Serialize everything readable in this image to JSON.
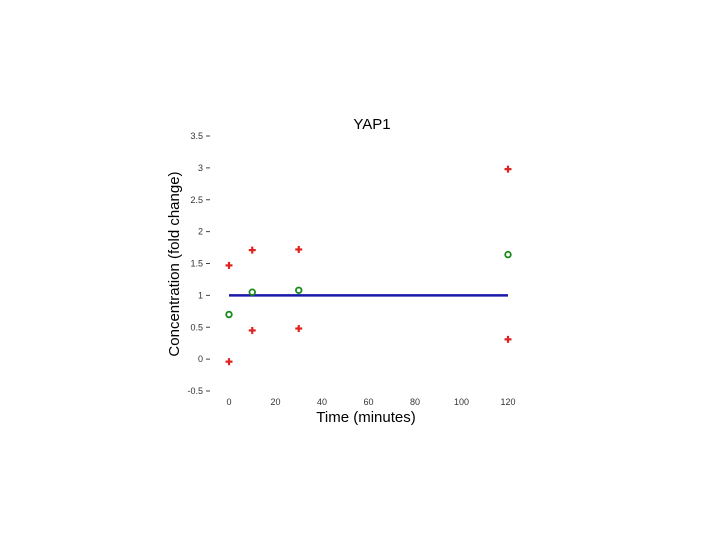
{
  "chart_data": {
    "type": "scatter",
    "title": "YAP1",
    "xlabel": "Time (minutes)",
    "ylabel": "Concentration (fold change)",
    "xlim": [
      0,
      120
    ],
    "ylim": [
      -0.5,
      3.5
    ],
    "xticks": [
      0,
      20,
      40,
      60,
      80,
      100,
      120
    ],
    "xtick_labels": [
      "0",
      "20",
      "40",
      "60",
      "80",
      "100",
      "120"
    ],
    "yticks": [
      -0.5,
      0,
      0.5,
      1,
      1.5,
      2,
      2.5,
      3,
      3.5
    ],
    "ytick_labels": [
      "-0.5",
      "0",
      "0.5",
      "1",
      "1.5",
      "2",
      "2.5",
      "3",
      "3.5"
    ],
    "grid": false,
    "legend": "none",
    "series": [
      {
        "marker": "plus",
        "color": "#dd2222",
        "points": [
          {
            "x": 0,
            "y": 1.47
          },
          {
            "x": 0,
            "y": -0.04
          },
          {
            "x": 10,
            "y": 1.71
          },
          {
            "x": 10,
            "y": 0.45
          },
          {
            "x": 30,
            "y": 1.72
          },
          {
            "x": 30,
            "y": 0.48
          },
          {
            "x": 120,
            "y": 2.98
          },
          {
            "x": 120,
            "y": 0.31
          }
        ]
      },
      {
        "marker": "circle",
        "color": "#1a8a1a",
        "points": [
          {
            "x": 0,
            "y": 0.7
          },
          {
            "x": 10,
            "y": 1.05
          },
          {
            "x": 30,
            "y": 1.08
          },
          {
            "x": 120,
            "y": 1.64
          }
        ]
      }
    ],
    "reference_line": {
      "y": 1.0,
      "x_start": 0,
      "x_end": 120,
      "color": "#1a1aaa"
    }
  }
}
